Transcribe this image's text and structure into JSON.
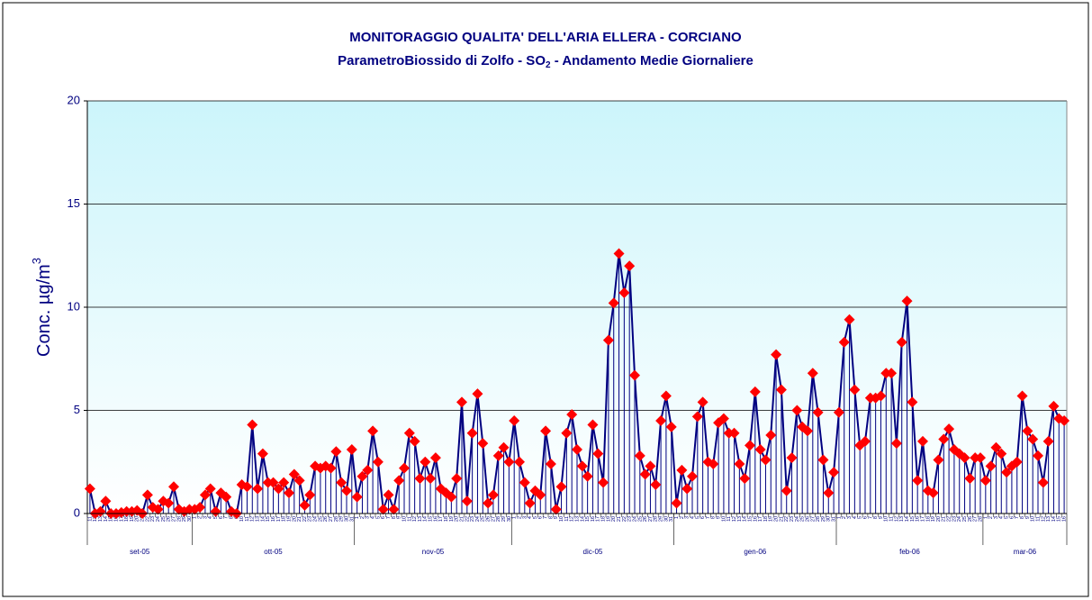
{
  "chart_data": {
    "type": "line",
    "title": "MONITORAGGIO QUALITA' DELL'ARIA ELLERA - CORCIANO",
    "subtitle_parts": [
      "ParametroBiossido di Zolfo - SO",
      "2",
      " - Andamento Medie Giornaliere"
    ],
    "ylabel_parts": [
      "Conc.  µg/m",
      "3"
    ],
    "categories": [
      "11",
      "12",
      "13",
      "14",
      "15",
      "16",
      "17",
      "18",
      "19",
      "20",
      "21",
      "22",
      "23",
      "24",
      "25",
      "26",
      "27",
      "28",
      "29",
      "30",
      "1",
      "2",
      "3",
      "4",
      "5",
      "6",
      "7",
      "8",
      "9",
      "10",
      "11",
      "12",
      "13",
      "14",
      "15",
      "16",
      "17",
      "18",
      "19",
      "20",
      "21",
      "22",
      "23",
      "24",
      "25",
      "26",
      "27",
      "28",
      "29",
      "30",
      "31",
      "1",
      "2",
      "3",
      "4",
      "5",
      "6",
      "7",
      "8",
      "9",
      "10",
      "11",
      "12",
      "13",
      "14",
      "15",
      "16",
      "17",
      "18",
      "19",
      "20",
      "21",
      "22",
      "23",
      "24",
      "25",
      "26",
      "27",
      "28",
      "29",
      "30",
      "1",
      "2",
      "3",
      "4",
      "5",
      "6",
      "7",
      "8",
      "9",
      "10",
      "11",
      "12",
      "13",
      "14",
      "15",
      "16",
      "17",
      "18",
      "19",
      "20",
      "21",
      "22",
      "23",
      "24",
      "25",
      "26",
      "27",
      "28",
      "29",
      "30",
      "31",
      "1",
      "2",
      "3",
      "4",
      "5",
      "6",
      "7",
      "8",
      "9",
      "10",
      "11",
      "12",
      "13",
      "14",
      "15",
      "16",
      "17",
      "18",
      "19",
      "20",
      "21",
      "22",
      "23",
      "24",
      "25",
      "26",
      "27",
      "28",
      "29",
      "30",
      "31",
      "1",
      "2",
      "3",
      "4",
      "5",
      "6",
      "7",
      "8",
      "9",
      "10",
      "11",
      "12",
      "13",
      "14",
      "15",
      "16",
      "17",
      "18",
      "19",
      "20",
      "21",
      "22",
      "23",
      "24",
      "25",
      "26",
      "27",
      "28",
      "1",
      "2",
      "3",
      "4",
      "5",
      "6",
      "7",
      "8",
      "9",
      "10",
      "11",
      "12",
      "13",
      "14",
      "15",
      "16"
    ],
    "groups": [
      "set-05",
      "ott-05",
      "nov-05",
      "dic-05",
      "gen-06",
      "feb-06",
      "mar-06"
    ],
    "series": [
      {
        "color": "#000080",
        "marker_color": "#ff0000",
        "values": [
          1.2,
          0,
          0.1,
          0.6,
          0,
          0,
          0.05,
          0.1,
          0.1,
          0.15,
          0,
          0.9,
          0.3,
          0.2,
          0.6,
          0.5,
          1.3,
          0.2,
          0.1,
          0.2,
          0.2,
          0.3,
          0.9,
          1.2,
          0.1,
          1.0,
          0.8,
          0.1,
          0,
          1.4,
          1.3,
          4.3,
          1.2,
          2.9,
          1.5,
          1.5,
          1.2,
          1.5,
          1.0,
          1.9,
          1.6,
          0.4,
          0.9,
          2.3,
          2.2,
          2.3,
          2.2,
          3.0,
          1.5,
          1.1,
          3.1,
          0.8,
          1.8,
          2.1,
          4.0,
          2.5,
          0.2,
          0.9,
          0.2,
          1.6,
          2.2,
          3.9,
          3.5,
          1.7,
          2.5,
          1.7,
          2.7,
          1.2,
          1.0,
          0.8,
          1.7,
          5.4,
          0.6,
          3.9,
          5.8,
          3.4,
          0.5,
          0.9,
          2.8,
          3.2,
          2.5,
          4.5,
          2.5,
          1.5,
          0.5,
          1.1,
          0.9,
          4.0,
          2.4,
          0.2,
          1.3,
          3.9,
          4.8,
          3.1,
          2.3,
          1.8,
          4.3,
          2.9,
          1.5,
          8.4,
          10.2,
          12.6,
          10.7,
          12.0,
          6.7,
          2.8,
          1.9,
          2.3,
          1.4,
          4.5,
          5.7,
          4.2,
          0.5,
          2.1,
          1.2,
          1.8,
          4.7,
          5.4,
          2.5,
          2.4,
          4.4,
          4.6,
          3.9,
          3.9,
          2.4,
          1.7,
          3.3,
          5.9,
          3.1,
          2.6,
          3.8,
          7.7,
          6.0,
          1.1,
          2.7,
          5.0,
          4.2,
          4.0,
          6.8,
          4.9,
          2.6,
          1.0,
          2.0,
          4.9,
          8.3,
          9.4,
          6.0,
          3.3,
          3.5,
          5.6,
          5.6,
          5.7,
          6.8,
          6.8,
          3.4,
          8.3,
          10.3,
          5.4,
          1.6,
          3.5,
          1.1,
          1.0,
          2.6,
          3.6,
          4.1,
          3.1,
          2.9,
          2.7,
          1.7,
          2.7,
          2.7,
          1.6,
          2.3,
          3.2,
          2.9,
          2.0,
          2.3,
          2.5,
          5.7,
          4.0,
          3.6,
          2.8,
          1.5,
          3.5,
          5.2,
          4.6,
          4.5
        ]
      }
    ],
    "ylim": [
      0,
      20
    ],
    "yticks": [
      0,
      5,
      10,
      15,
      20
    ],
    "grid": true,
    "drop_lines": true
  }
}
